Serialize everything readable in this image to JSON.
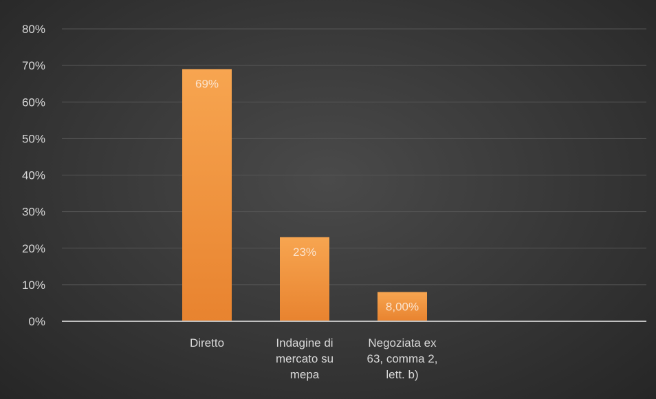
{
  "chart_data": {
    "type": "bar",
    "categories": [
      [
        "Diretto"
      ],
      [
        "Indagine di",
        "mercato su",
        "mepa"
      ],
      [
        "Negoziata ex",
        "63, comma 2,",
        "lett. b)"
      ]
    ],
    "values": [
      69,
      23,
      8
    ],
    "data_labels": [
      "69%",
      "23%",
      "8,00%"
    ],
    "y_ticks": [
      "0%",
      "10%",
      "20%",
      "30%",
      "40%",
      "50%",
      "60%",
      "70%",
      "80%"
    ],
    "ylim": [
      0,
      80
    ],
    "title": "",
    "xlabel": "",
    "ylabel": "",
    "grid": true,
    "legend": "none",
    "bar_color_top": "#f7a550",
    "bar_color_bottom": "#e8832f"
  }
}
